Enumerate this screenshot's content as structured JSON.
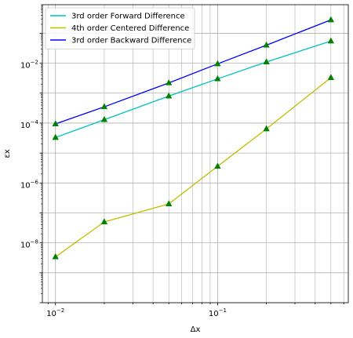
{
  "chart_data": {
    "type": "line",
    "title": "",
    "xlabel": "Δx",
    "ylabel": "εx",
    "xscale": "log",
    "yscale": "log",
    "xlim": [
      0.0083,
      0.64
    ],
    "ylim": [
      1e-10,
      0.9
    ],
    "grid": "major and minor vertical, major horizontal",
    "legend_position": "top-left",
    "marker": {
      "shape": "triangle",
      "color": "#008000"
    },
    "x_ticks": [
      {
        "value": 0.01,
        "base": "10",
        "exponent": "−2"
      },
      {
        "value": 0.1,
        "base": "10",
        "exponent": "−1"
      }
    ],
    "y_ticks": [
      {
        "value": 1e-08,
        "base": "10",
        "exponent": "−8"
      },
      {
        "value": 1e-06,
        "base": "10",
        "exponent": "−6"
      },
      {
        "value": 0.0001,
        "base": "10",
        "exponent": "−4"
      },
      {
        "value": 0.01,
        "base": "10",
        "exponent": "−2"
      }
    ],
    "x": [
      0.01,
      0.02,
      0.05,
      0.1,
      0.2,
      0.5
    ],
    "series": [
      {
        "name": "3rd order Forward Difference",
        "color": "#00BFBF",
        "values": [
          3.3e-05,
          0.00013,
          0.0008,
          0.003,
          0.011,
          0.055
        ]
      },
      {
        "name": "4th order Centered Difference",
        "color": "#BFBF00",
        "values": [
          3.4e-09,
          5e-08,
          2e-07,
          3.6e-06,
          6.4e-05,
          0.0033
        ]
      },
      {
        "name": "3rd order Backward Difference",
        "color": "#0000FF",
        "values": [
          9.4e-05,
          0.00035,
          0.0022,
          0.0095,
          0.04,
          0.28
        ]
      }
    ]
  }
}
